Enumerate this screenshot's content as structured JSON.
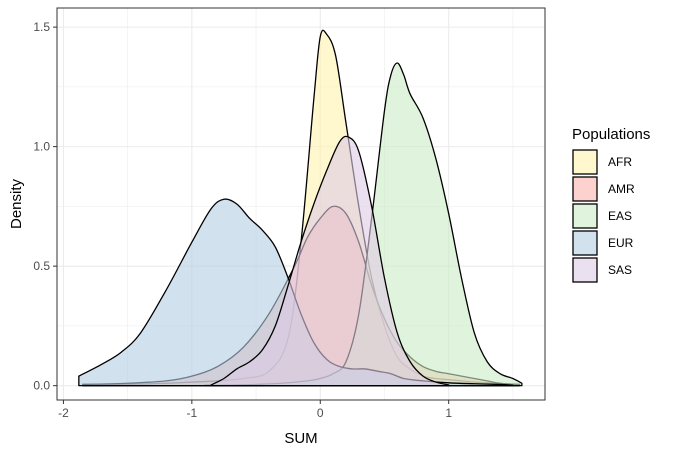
{
  "chart_data": {
    "type": "area",
    "subtype": "density",
    "title": "",
    "xlabel": "SUM",
    "ylabel": "Density",
    "xlim": [
      -2.05,
      1.75
    ],
    "ylim": [
      -0.06,
      1.58
    ],
    "xticks": [
      -2,
      -1,
      0,
      1
    ],
    "xtick_labels": [
      "-2",
      "-1",
      "0",
      "1"
    ],
    "yticks": [
      0,
      0.5,
      1,
      1.5
    ],
    "ytick_labels": [
      "0.0",
      "0.5",
      "1.0",
      "1.5"
    ],
    "grid": true,
    "legend": {
      "title": "Populations",
      "position": "right"
    },
    "series": [
      {
        "name": "AFR",
        "color": "#FFF2AE",
        "x": [
          -1.85,
          -1.5,
          -1.2,
          -1.0,
          -0.8,
          -0.6,
          -0.4,
          -0.25,
          -0.15,
          -0.05,
          0.0,
          0.05,
          0.12,
          0.2,
          0.3,
          0.4,
          0.5,
          0.6,
          0.7,
          0.8,
          0.9,
          1.0,
          1.1,
          1.2,
          1.3,
          1.4,
          1.55
        ],
        "y": [
          0.005,
          0.006,
          0.01,
          0.015,
          0.02,
          0.03,
          0.06,
          0.2,
          0.6,
          1.2,
          1.46,
          1.47,
          1.38,
          1.1,
          0.75,
          0.45,
          0.25,
          0.12,
          0.07,
          0.04,
          0.03,
          0.025,
          0.02,
          0.015,
          0.012,
          0.008,
          0.005
        ]
      },
      {
        "name": "AMR",
        "color": "#FBB4AE",
        "x": [
          -1.85,
          -1.5,
          -1.2,
          -1.0,
          -0.8,
          -0.6,
          -0.4,
          -0.2,
          -0.1,
          0.0,
          0.1,
          0.2,
          0.3,
          0.4,
          0.5,
          0.6,
          0.7,
          0.8,
          0.9,
          1.0,
          1.1,
          1.2,
          1.3,
          1.4,
          1.55
        ],
        "y": [
          0.005,
          0.01,
          0.02,
          0.04,
          0.08,
          0.16,
          0.3,
          0.5,
          0.62,
          0.7,
          0.75,
          0.72,
          0.6,
          0.42,
          0.28,
          0.18,
          0.12,
          0.08,
          0.06,
          0.05,
          0.04,
          0.03,
          0.02,
          0.01,
          0.005
        ]
      },
      {
        "name": "EAS",
        "color": "#CCEBC5",
        "x": [
          -0.9,
          -0.7,
          -0.5,
          -0.3,
          -0.1,
          0.0,
          0.1,
          0.2,
          0.3,
          0.4,
          0.5,
          0.55,
          0.6,
          0.65,
          0.7,
          0.8,
          0.9,
          1.0,
          1.1,
          1.2,
          1.3,
          1.4,
          1.5,
          1.57
        ],
        "y": [
          0.001,
          0.002,
          0.005,
          0.01,
          0.02,
          0.03,
          0.05,
          0.1,
          0.3,
          0.7,
          1.15,
          1.3,
          1.35,
          1.3,
          1.22,
          1.12,
          0.95,
          0.72,
          0.45,
          0.22,
          0.1,
          0.05,
          0.03,
          0.01
        ]
      },
      {
        "name": "EUR",
        "color": "#B3CDE3",
        "x": [
          -1.88,
          -1.7,
          -1.55,
          -1.4,
          -1.2,
          -1.0,
          -0.85,
          -0.75,
          -0.65,
          -0.55,
          -0.45,
          -0.35,
          -0.25,
          -0.15,
          -0.05,
          0.05,
          0.15,
          0.25,
          0.35,
          0.45,
          0.55,
          0.65,
          0.8,
          1.0,
          1.2,
          1.4,
          1.5
        ],
        "y": [
          0.04,
          0.09,
          0.14,
          0.22,
          0.4,
          0.6,
          0.74,
          0.78,
          0.76,
          0.7,
          0.65,
          0.58,
          0.45,
          0.3,
          0.18,
          0.11,
          0.08,
          0.07,
          0.07,
          0.06,
          0.05,
          0.03,
          0.02,
          0.012,
          0.008,
          0.005,
          0.002
        ]
      },
      {
        "name": "SAS",
        "color": "#DECBE4",
        "x": [
          -0.85,
          -0.75,
          -0.65,
          -0.55,
          -0.45,
          -0.35,
          -0.25,
          -0.15,
          -0.05,
          0.05,
          0.15,
          0.22,
          0.3,
          0.4,
          0.5,
          0.6,
          0.7,
          0.8,
          0.9,
          1.0
        ],
        "y": [
          0.003,
          0.03,
          0.07,
          0.1,
          0.15,
          0.25,
          0.42,
          0.6,
          0.76,
          0.9,
          1.02,
          1.04,
          0.98,
          0.75,
          0.45,
          0.22,
          0.1,
          0.04,
          0.015,
          0.003
        ]
      }
    ]
  }
}
